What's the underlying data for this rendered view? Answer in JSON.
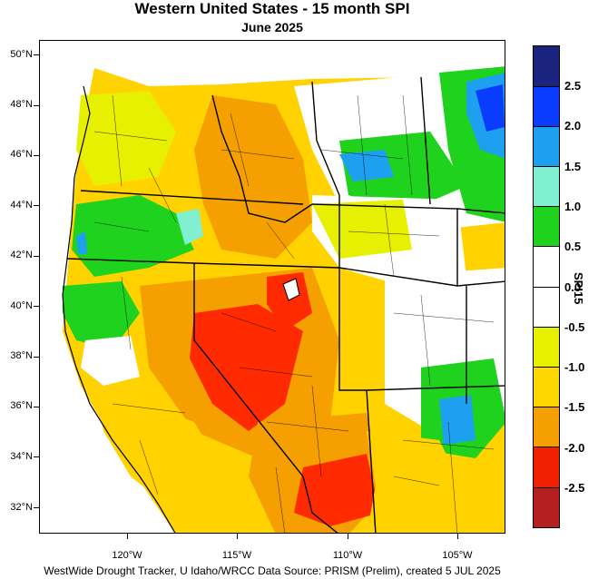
{
  "title": "Western United States - 15 month SPI",
  "subtitle": "June 2025",
  "footer": "WestWide Drought Tracker, U Idaho/WRCC Data Source: PRISM (Prelim), created  5 JUL 2025",
  "latitude_labels": [
    "50°N",
    "48°N",
    "46°N",
    "44°N",
    "42°N",
    "40°N",
    "38°N",
    "36°N",
    "34°N",
    "32°N"
  ],
  "longitude_labels": [
    "120°W",
    "115°W",
    "110°W",
    "105°W"
  ],
  "legend": {
    "title": "SPI15",
    "tick_labels": [
      "2.5",
      "2.0",
      "1.5",
      "1.0",
      "0.5",
      "0.0",
      "-0.5",
      "-1.0",
      "-1.5",
      "-2.0",
      "-2.5"
    ],
    "colors": [
      "#1a237e",
      "#0a3cff",
      "#1ea0f0",
      "#80f0d0",
      "#1ed21e",
      "#ffffff",
      "#ffffff",
      "#e6f000",
      "#ffd700",
      "#f5a000",
      "#f02000",
      "#b42020"
    ]
  },
  "map_colors": {
    "severe_dry": "#ff2a00",
    "very_dry": "#f5a000",
    "moderately_dry": "#ffd200",
    "slightly_dry": "#e6f000",
    "near_normal": "#ffffff",
    "slightly_wet": "#1ed21e",
    "moderately_wet": "#80f0d0",
    "very_wet": "#1ea0f0",
    "extremely_wet": "#0a3cff"
  }
}
